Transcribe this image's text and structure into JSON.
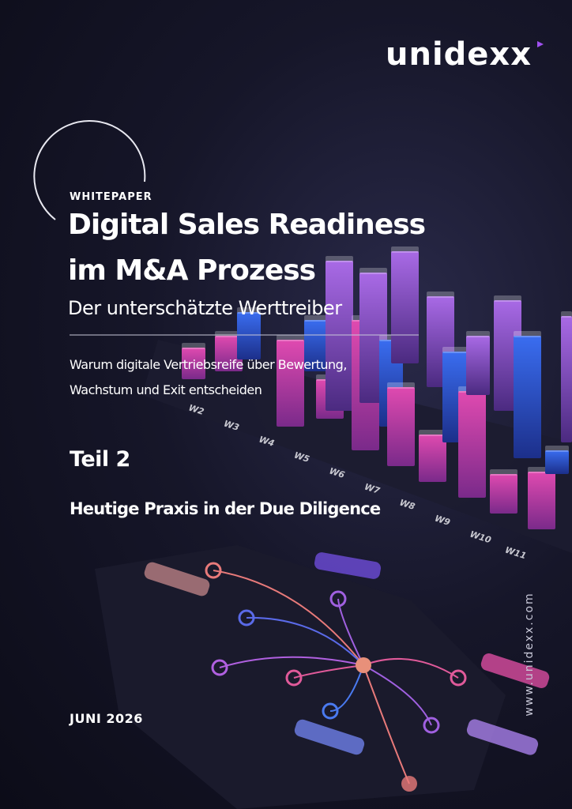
{
  "brand": {
    "logo": "unidexx",
    "website": "www.unidexx.com"
  },
  "cover": {
    "label": "WHITEPAPER",
    "title_lines": [
      "Digital Sales Readiness",
      "im M&A Prozess"
    ],
    "subtitle": "Der unterschätzte Werttreiber",
    "description_lines": [
      "Warum digitale Vertriebsreife über Bewertung,",
      "Wachstum und Exit entscheiden"
    ],
    "part": "Teil 2",
    "part_title": "Heutige Praxis in der Due Diligence",
    "date": "JUNI 2026"
  },
  "background": {
    "week_labels": [
      "W2",
      "W3",
      "W4",
      "W5",
      "W6",
      "W7",
      "W8",
      "W9",
      "W10",
      "W11"
    ]
  }
}
